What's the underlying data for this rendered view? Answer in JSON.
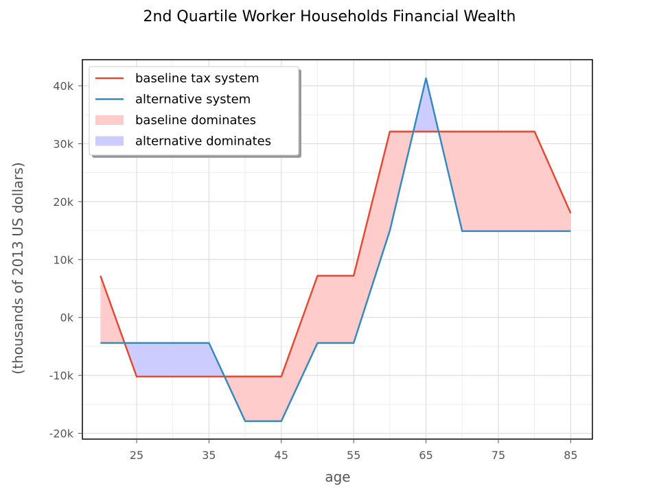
{
  "chart_data": {
    "type": "line",
    "title": "2nd Quartile Worker Households Financial Wealth",
    "xlabel": "age",
    "ylabel": "(thousands of 2013 US dollars)",
    "xlim": [
      17.5,
      88
    ],
    "ylim": [
      -21000,
      44500
    ],
    "x_ticks": [
      25,
      35,
      45,
      55,
      65,
      75,
      85
    ],
    "x_tick_labels": [
      "25",
      "35",
      "45",
      "55",
      "65",
      "75",
      "85"
    ],
    "y_ticks": [
      -20000,
      -10000,
      0,
      10000,
      20000,
      30000,
      40000
    ],
    "y_tick_labels": [
      "-20k",
      "-10k",
      "0k",
      "10k",
      "20k",
      "30k",
      "40k"
    ],
    "grid": true,
    "legend_position": "top-left",
    "x": [
      20,
      25,
      30,
      35,
      40,
      45,
      50,
      55,
      60,
      65,
      70,
      75,
      80,
      85
    ],
    "series": [
      {
        "name": "baseline tax system",
        "color": "#e24a33",
        "values": [
          7200,
          -10200,
          -10200,
          -10200,
          -10200,
          -10200,
          7200,
          7200,
          32100,
          32100,
          32100,
          32100,
          32100,
          18000
        ]
      },
      {
        "name": "alternative system",
        "color": "#348abd",
        "values": [
          -4400,
          -4400,
          -4400,
          -4400,
          -17900,
          -17900,
          -4400,
          -4400,
          15000,
          41300,
          14900,
          14900,
          14900,
          14900
        ]
      }
    ],
    "fills": [
      {
        "name": "baseline dominates",
        "color": "#ffcccc"
      },
      {
        "name": "alternative dominates",
        "color": "#ccccff"
      }
    ]
  }
}
